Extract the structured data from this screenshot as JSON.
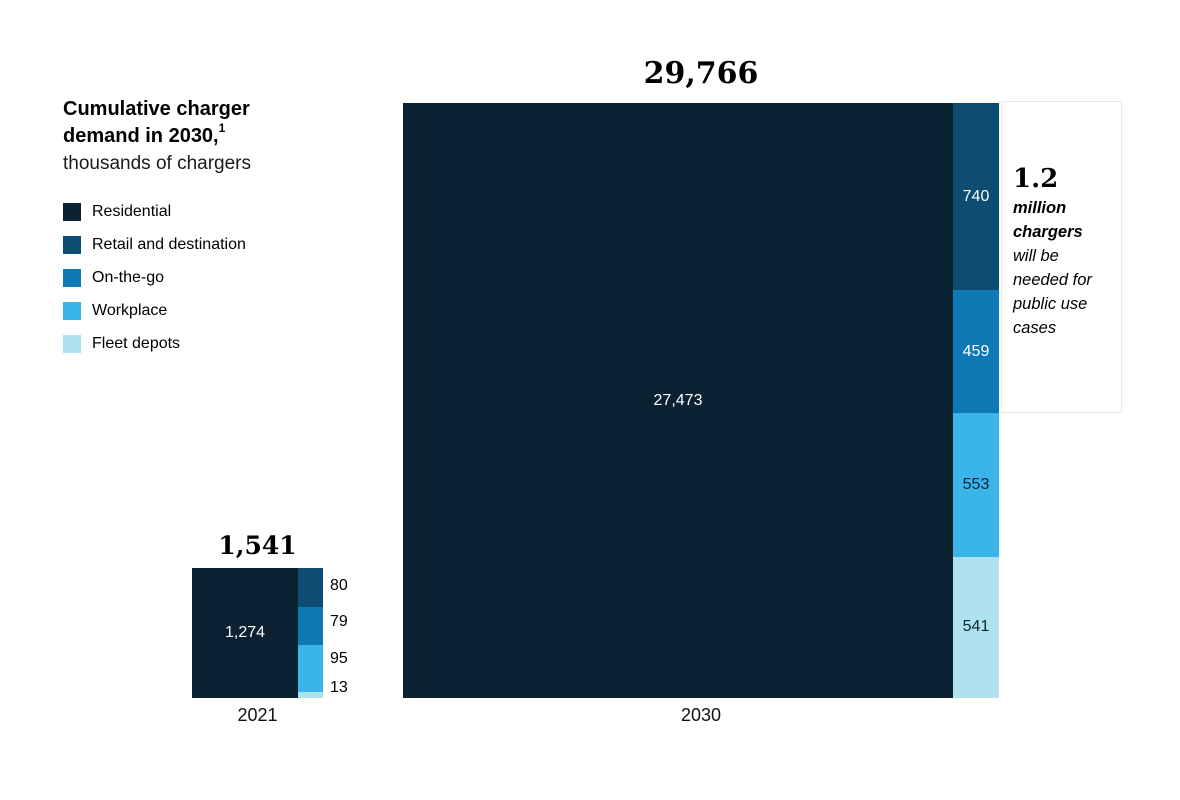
{
  "title": {
    "heading": "Cumulative charger demand in 2030,",
    "footnote_marker": "1",
    "unit": "thousands of chargers"
  },
  "annotation": {
    "value": "1.2",
    "emphasis": "million chargers",
    "text": "will be needed for public use cases"
  },
  "colors": {
    "residential": "#0a2231",
    "retail_and_destination": "#0d4d71",
    "on_the_go": "#0d7ab5",
    "workplace": "#3ab5ea",
    "fleet_depots": "#aee2ee",
    "annotation_border": "#e8e8e8",
    "label_light": "#ffffff",
    "label_dark": "#0e2130"
  },
  "chart_data": {
    "type": "bar",
    "variant": "stacked-bar-with-breakout-column",
    "title": "Cumulative charger demand in 2030, thousands of chargers",
    "categories": [
      "2021",
      "2030"
    ],
    "series": [
      {
        "name": "Residential",
        "color": "#0a2231",
        "values": [
          1274,
          27473
        ]
      },
      {
        "name": "Retail and destination",
        "color": "#0d4d71",
        "values": [
          80,
          740
        ]
      },
      {
        "name": "On-the-go",
        "color": "#0d7ab5",
        "values": [
          79,
          459
        ]
      },
      {
        "name": "Workplace",
        "color": "#3ab5ea",
        "values": [
          95,
          553
        ]
      },
      {
        "name": "Fleet depots",
        "color": "#aee2ee",
        "values": [
          13,
          541
        ]
      }
    ],
    "totals": [
      1541,
      29766
    ],
    "total_labels": [
      "1,541",
      "29,766"
    ],
    "segment_labels_2021": [
      "1,274",
      "80",
      "79",
      "95",
      "13"
    ],
    "segment_labels_2030": [
      "27,473",
      "740",
      "459",
      "553",
      "541"
    ],
    "legend_position": "left",
    "grid": false,
    "axes": "category-only"
  }
}
